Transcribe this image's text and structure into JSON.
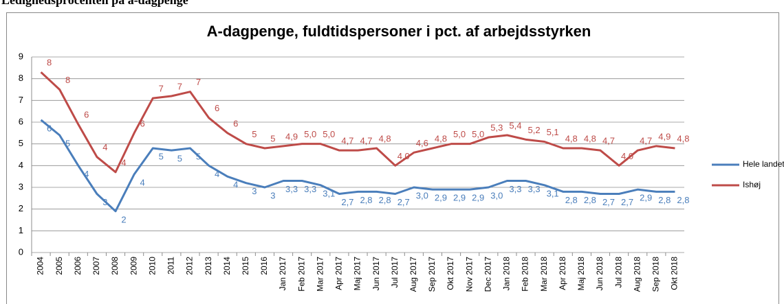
{
  "heading": "Ledighedsprocenten på a-dagpenge",
  "chart_data": {
    "type": "line",
    "title": "A-dagpenge, fuldtidspersoner i pct. af arbejdsstyrken",
    "categories": [
      "2004",
      "2005",
      "2006",
      "2007",
      "2008",
      "2009",
      "2010",
      "2011",
      "2012",
      "2013",
      "2014",
      "2015",
      "2016",
      "Jan 2017",
      "Feb 2017",
      "Mar 2017",
      "Apr 2017",
      "Maj 2017",
      "Jun 2017",
      "Jul 2017",
      "Aug 2017",
      "Sep 2017",
      "Okt 2017",
      "Nov 2017",
      "Dec 2017",
      "Jan 2018",
      "Feb 2018",
      "Mar 2018",
      "Apr 2018",
      "Maj 2018",
      "Jun 2018",
      "Jul 2018",
      "Aug 2018",
      "Sep 2018",
      "Okt 2018"
    ],
    "series": [
      {
        "name": "Hele landet",
        "color": "#4a7ebb",
        "values": [
          6.1,
          5.4,
          4.0,
          2.7,
          1.9,
          3.6,
          4.8,
          4.7,
          4.8,
          4.0,
          3.5,
          3.2,
          3.0,
          3.3,
          3.3,
          3.1,
          2.7,
          2.8,
          2.8,
          2.7,
          3.0,
          2.9,
          2.9,
          2.9,
          3.0,
          3.3,
          3.3,
          3.1,
          2.8,
          2.8,
          2.7,
          2.7,
          2.9,
          2.8,
          2.8
        ],
        "value_labels": [
          "6",
          "5",
          "4",
          "3",
          "2",
          "4",
          "5",
          "5",
          "5",
          "4",
          "4",
          "3",
          "3",
          "3,3",
          "3,3",
          "3,1",
          "2,7",
          "2,8",
          "2,8",
          "2,7",
          "3,0",
          "2,9",
          "2,9",
          "2,9",
          "3,0",
          "3,3",
          "3,3",
          "3,1",
          "2,8",
          "2,8",
          "2,7",
          "2,7",
          "2,9",
          "2,8",
          "2,8"
        ]
      },
      {
        "name": "Ishøj",
        "color": "#be4b48",
        "values": [
          8.3,
          7.5,
          5.9,
          4.4,
          3.7,
          5.5,
          7.1,
          7.2,
          7.4,
          6.2,
          5.5,
          5.0,
          4.8,
          4.9,
          5.0,
          5.0,
          4.7,
          4.7,
          4.8,
          4.0,
          4.6,
          4.8,
          5.0,
          5.0,
          5.3,
          5.4,
          5.2,
          5.1,
          4.8,
          4.8,
          4.7,
          4.0,
          4.7,
          4.9,
          4.8
        ],
        "value_labels": [
          "8",
          "8",
          "6",
          "4",
          "4",
          "6",
          "7",
          "7",
          "7",
          "6",
          "6",
          "5",
          "5",
          "4,9",
          "5,0",
          "5,0",
          "4,7",
          "4,7",
          "4,8",
          "4,0",
          "4,6",
          "4,8",
          "5,0",
          "5,0",
          "5,3",
          "5,4",
          "5,2",
          "5,1",
          "4,8",
          "4,8",
          "4,7",
          "4,0",
          "4,7",
          "4,9",
          "4,8"
        ]
      }
    ],
    "ylim": [
      0,
      9
    ],
    "yticks": [
      0,
      1,
      2,
      3,
      4,
      5,
      6,
      7,
      8,
      9
    ],
    "grid": true,
    "legend": "right"
  }
}
